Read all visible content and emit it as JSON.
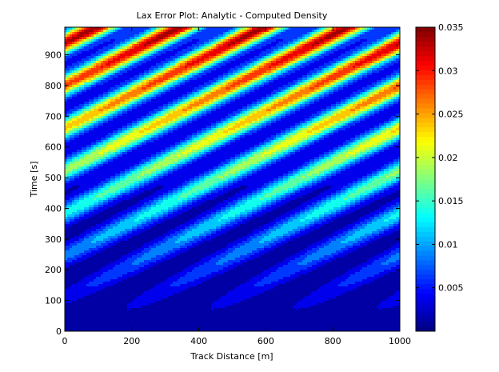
{
  "chart_data": {
    "type": "heatmap",
    "subtype": "filled-contour",
    "title": "Lax Error Plot: Analytic - Computed Density",
    "xlabel": "Track Distance [m]",
    "ylabel": "Time [s]",
    "xlim": [
      0,
      1000
    ],
    "ylim": [
      0,
      990
    ],
    "xticks": [
      0,
      200,
      400,
      600,
      800,
      1000
    ],
    "yticks": [
      0,
      100,
      200,
      300,
      400,
      500,
      600,
      700,
      800,
      900
    ],
    "colorbar": {
      "colormap": "jet",
      "clim": [
        0,
        0.035
      ],
      "ticks": [
        "0.005",
        "0.01",
        "0.015",
        "0.02",
        "0.025",
        "0.03",
        "0.035"
      ],
      "tick_values": [
        0.005,
        0.01,
        0.015,
        0.02,
        0.025,
        0.03,
        0.035
      ]
    },
    "contour_levels": [
      0.0025,
      0.005,
      0.0075,
      0.01,
      0.0125,
      0.015,
      0.0175,
      0.02,
      0.0225,
      0.025,
      0.0275,
      0.03,
      0.0325
    ],
    "field": {
      "wave_period_distance": 250,
      "phase_speed": 1.8,
      "amplitude_growth_per_100s": 0.0035
    }
  }
}
